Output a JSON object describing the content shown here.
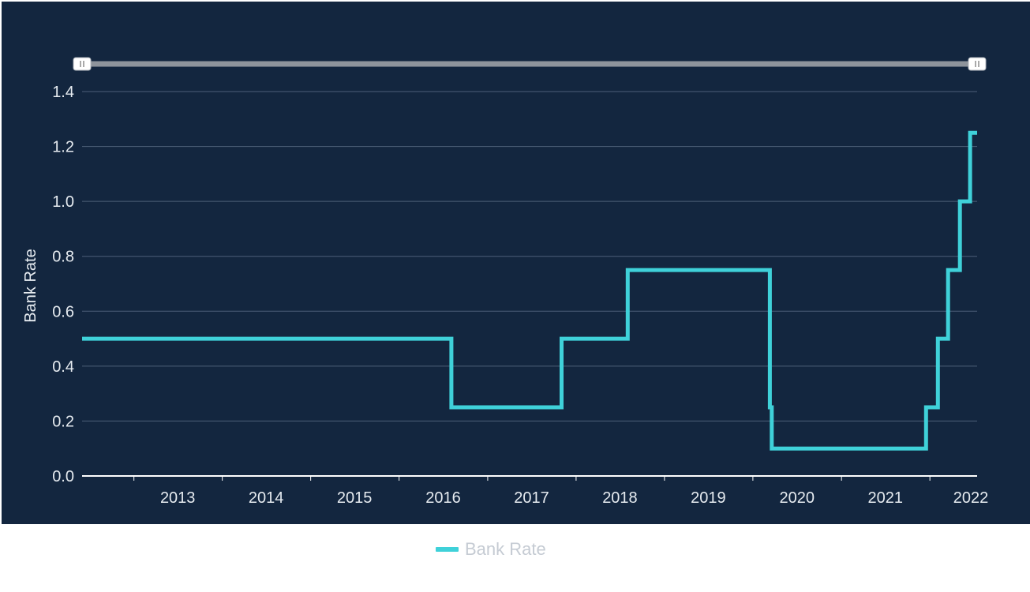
{
  "chart_data": {
    "type": "line",
    "step": true,
    "ylabel": "Bank Rate",
    "xlabel": "",
    "ylim": [
      0,
      1.4
    ],
    "yticks": [
      "0.0",
      "0.2",
      "0.4",
      "0.6",
      "0.8",
      "1.0",
      "1.2",
      "1.4"
    ],
    "xticks": [
      "2013",
      "2014",
      "2015",
      "2016",
      "2017",
      "2018",
      "2019",
      "2020",
      "2021",
      "2022"
    ],
    "grid": true,
    "legend": "bottom-center",
    "range_slider": true,
    "series": [
      {
        "name": "Bank Rate",
        "color": "#3fd1d9",
        "x": [
          "2012-06-01",
          "2016-08-04",
          "2017-11-02",
          "2018-08-02",
          "2020-03-11",
          "2020-03-19",
          "2021-12-16",
          "2022-02-03",
          "2022-03-17",
          "2022-05-05",
          "2022-06-16",
          "2022-07-15"
        ],
        "y": [
          0.5,
          0.25,
          0.5,
          0.75,
          0.25,
          0.1,
          0.25,
          0.5,
          0.75,
          1.0,
          1.25,
          1.25
        ]
      }
    ]
  },
  "legend": {
    "label": "Bank Rate",
    "color": "#3fd1d9"
  },
  "colors": {
    "background": "#13263f",
    "grid": "#4d5f78",
    "axis": "#ffffff",
    "slider_track": "#8e949c",
    "slider_handle": "#ffffff"
  }
}
